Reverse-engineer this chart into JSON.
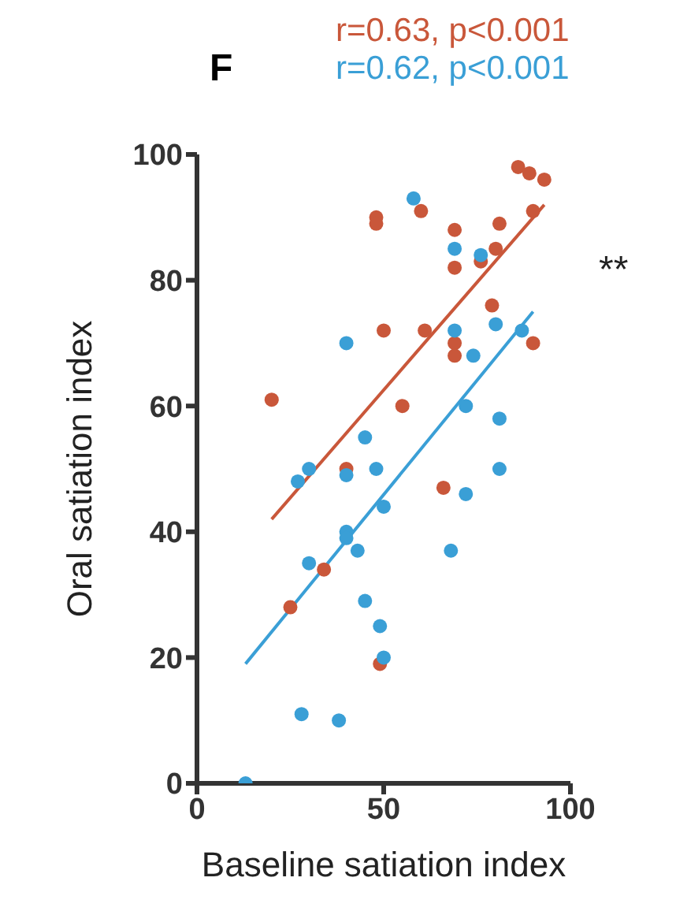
{
  "chart_data": {
    "type": "scatter",
    "title": "F",
    "xlabel": "Baseline satiation index",
    "ylabel": "Oral satiation index",
    "annotations": [
      "r=0.63, p<0.001",
      "r=0.62, p<0.001",
      "**"
    ],
    "xlim": [
      0,
      100
    ],
    "xticks": [
      0,
      50,
      100
    ],
    "ylim": [
      0,
      100
    ],
    "yticks": [
      0,
      20,
      40,
      60,
      80,
      100
    ],
    "marker": "circle",
    "series": [
      {
        "color": "#c9573a",
        "x": [
          48,
          48,
          60,
          69,
          69,
          50,
          61,
          69,
          69,
          20,
          55,
          40,
          66,
          34,
          25,
          49,
          86,
          89,
          93,
          90,
          81,
          80,
          76,
          79,
          90
        ],
        "values": [
          90,
          89,
          91,
          88,
          82,
          72,
          72,
          70,
          68,
          61,
          60,
          50,
          47,
          34,
          28,
          19,
          98,
          97,
          96,
          91,
          89,
          85,
          83,
          76,
          70
        ]
      },
      {
        "color": "#3a9fd6",
        "x": [
          58,
          69,
          40,
          69,
          45,
          27,
          30,
          40,
          48,
          50,
          40,
          40,
          43,
          68,
          30,
          45,
          49,
          50,
          28,
          38,
          13,
          76,
          80,
          87,
          74,
          81,
          81,
          72,
          72
        ],
        "values": [
          93,
          85,
          70,
          72,
          55,
          48,
          50,
          49,
          50,
          44,
          40,
          39,
          37,
          37,
          35,
          29,
          25,
          20,
          11,
          10,
          0,
          84,
          73,
          72,
          68,
          58,
          50,
          46,
          60
        ]
      },
      {
        "type": "line",
        "marker": "none",
        "color": "#c9573a",
        "x": [
          20,
          93
        ],
        "values": [
          42,
          92
        ]
      },
      {
        "type": "line",
        "marker": "none",
        "color": "#3a9fd6",
        "x": [
          13,
          90
        ],
        "values": [
          19,
          75
        ]
      }
    ]
  }
}
